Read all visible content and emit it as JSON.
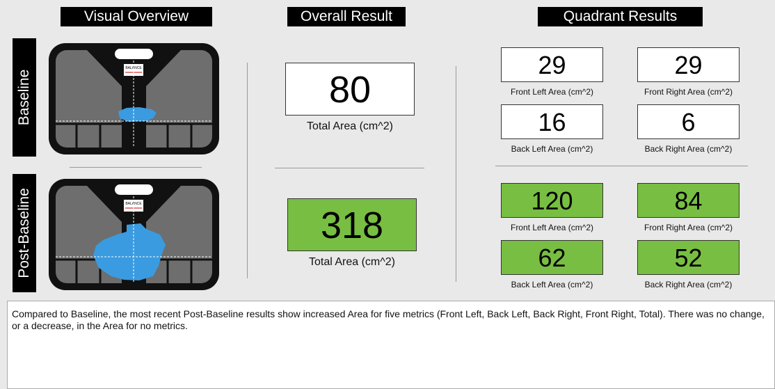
{
  "headers": {
    "visual": "Visual Overview",
    "overall": "Overall Result",
    "quadrant": "Quadrant Results"
  },
  "rows": [
    {
      "label": "Baseline",
      "logo": "BALANCE",
      "total": {
        "value": 80,
        "label": "Total Area (cm^2)"
      },
      "quadrants": [
        {
          "value": 29,
          "label": "Front Left Area (cm^2)"
        },
        {
          "value": 29,
          "label": "Front Right Area (cm^2)"
        },
        {
          "value": 16,
          "label": "Back Left Area (cm^2)"
        },
        {
          "value": 6,
          "label": "Back Right Area (cm^2)"
        }
      ]
    },
    {
      "label": "Post-Baseline",
      "logo": "BALANCE",
      "total": {
        "value": 318,
        "label": "Total Area (cm^2)"
      },
      "quadrants": [
        {
          "value": 120,
          "label": "Front Left Area (cm^2)"
        },
        {
          "value": 84,
          "label": "Front Right Area (cm^2)"
        },
        {
          "value": 62,
          "label": "Back Left Area (cm^2)"
        },
        {
          "value": 52,
          "label": "Back Right Area (cm^2)"
        }
      ]
    }
  ],
  "summary": "Compared to Baseline, the most recent Post-Baseline results show increased Area for five metrics (Front Left, Back Left, Back Right, Front Right, Total). There was no change, or a decrease, in the Area for no metrics."
}
